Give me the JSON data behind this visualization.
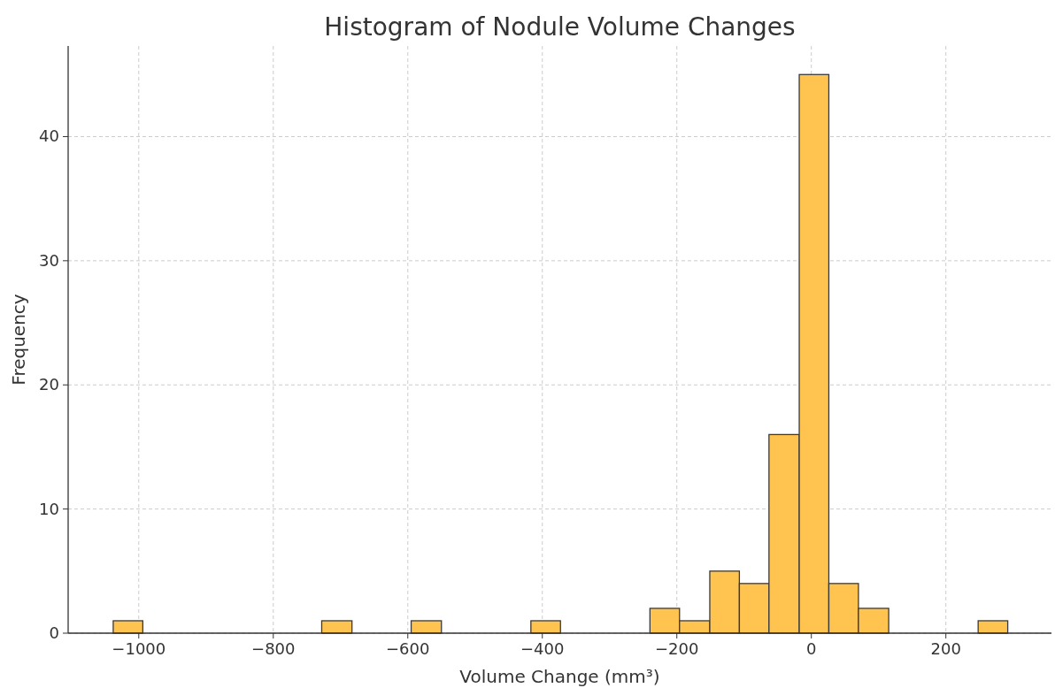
{
  "chart_data": {
    "type": "histogram",
    "title": "Histogram of Nodule Volume Changes",
    "xlabel": "Volume Change (mm³)",
    "ylabel": "Frequency",
    "bins": [
      -1038,
      -994,
      -728,
      -683,
      -595,
      -550,
      -417,
      -373,
      -240,
      -196,
      -151,
      -107,
      -63,
      -18,
      26,
      70,
      115,
      248,
      292
    ],
    "values": [
      1,
      0,
      1,
      0,
      1,
      0,
      1,
      0,
      2,
      1,
      5,
      4,
      16,
      45,
      4,
      2,
      0,
      1
    ],
    "color": "#ffc44f",
    "xlim": [
      -1105,
      357
    ],
    "xticks": [
      -1000,
      -800,
      -600,
      -400,
      -200,
      0,
      200
    ],
    "ylim": [
      0,
      47.3
    ],
    "yticks": [
      0,
      10,
      20,
      30,
      40
    ],
    "grid": true
  }
}
